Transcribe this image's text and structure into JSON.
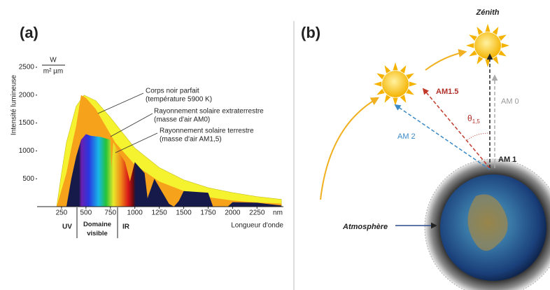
{
  "chart_data": {
    "type": "area",
    "panel_label": "(a)",
    "y_label": "Intensité lumineuse",
    "y_unit_top": "W",
    "y_unit_bottom": "m² µm",
    "x_label": "Longueur d'onde",
    "x_unit": "nm",
    "xlim": [
      0,
      2520
    ],
    "ylim": [
      0,
      2500
    ],
    "xticks": [
      250,
      500,
      750,
      1000,
      1250,
      1500,
      1750,
      2000,
      2250
    ],
    "yticks": [
      500,
      1000,
      1500,
      2000,
      2500
    ],
    "regions": [
      "UV",
      "Domaine visible",
      "IR"
    ],
    "series": [
      {
        "name": "Corps noir parfait",
        "note": "(température 5900 K)",
        "color": "#f5f230",
        "x": [
          200,
          250,
          300,
          400,
          480,
          600,
          750,
          1000,
          1250,
          1500,
          1750,
          2000,
          2250,
          2500
        ],
        "values": [
          0,
          600,
          1150,
          1800,
          2000,
          1900,
          1600,
          1050,
          700,
          480,
          340,
          250,
          180,
          130
        ]
      },
      {
        "name": "Rayonnement solaire extraterrestre",
        "note": "(masse d'air AM0)",
        "color": "#f7a21b",
        "x": [
          200,
          250,
          300,
          350,
          400,
          450,
          500,
          550,
          600,
          700,
          800,
          1000,
          1250,
          1500,
          1750,
          2000,
          2250,
          2500
        ],
        "values": [
          0,
          300,
          600,
          1050,
          1450,
          2000,
          1950,
          1850,
          1750,
          1450,
          1150,
          750,
          450,
          280,
          170,
          110,
          75,
          55
        ]
      },
      {
        "name": "Rayonnement solaire terrestre",
        "note": "(masse d'air AM1,5)",
        "color": "#151a4a",
        "x": [
          300,
          350,
          400,
          450,
          500,
          550,
          650,
          750,
          760,
          780,
          900,
          950,
          1000,
          1100,
          1130,
          1200,
          1350,
          1400,
          1450,
          1500,
          1750,
          1800,
          1950,
          2000,
          2250,
          2500
        ],
        "values": [
          0,
          500,
          900,
          1200,
          1300,
          1270,
          1250,
          1200,
          700,
          1150,
          800,
          450,
          800,
          600,
          150,
          500,
          50,
          0,
          100,
          280,
          250,
          0,
          0,
          80,
          70,
          20
        ]
      }
    ]
  },
  "diagram": {
    "panel_label": "(b)",
    "zenith": "Zénith",
    "am15": "AM1.5",
    "am0": "AM 0",
    "am2": "AM 2",
    "am1": "AM 1",
    "theta": "θ",
    "theta_sub": "1,5",
    "atmosphere": "Atmosphère"
  }
}
